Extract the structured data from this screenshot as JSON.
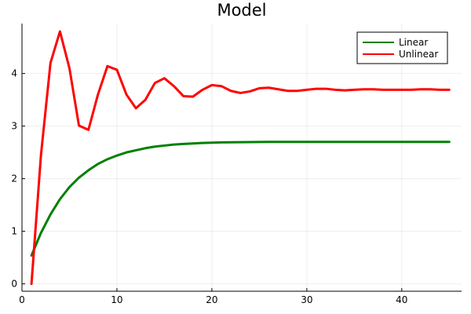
{
  "chart_data": {
    "type": "line",
    "title": "Model",
    "xlabel": "",
    "ylabel": "",
    "xlim": [
      0,
      46.3
    ],
    "ylim": [
      -0.14,
      4.95
    ],
    "xticks": [
      0,
      10,
      20,
      30,
      40
    ],
    "yticks": [
      0,
      1,
      2,
      3,
      4
    ],
    "xtick_labels": [
      "0",
      "10",
      "20",
      "30",
      "40"
    ],
    "ytick_labels": [
      "0",
      "1",
      "2",
      "3",
      "4"
    ],
    "grid": true,
    "legend_position": "top-right",
    "series": [
      {
        "name": "Linear",
        "color": "#008000",
        "x": [
          1,
          2,
          3,
          4,
          5,
          6,
          7,
          8,
          9,
          10,
          11,
          12,
          13,
          14,
          15,
          16,
          17,
          18,
          19,
          20,
          21,
          22,
          23,
          24,
          25,
          26,
          27,
          28,
          29,
          30,
          31,
          32,
          33,
          34,
          35,
          36,
          37,
          38,
          39,
          40,
          41,
          42,
          43,
          44,
          45
        ],
        "values": [
          0.54,
          0.97,
          1.32,
          1.61,
          1.84,
          2.02,
          2.16,
          2.28,
          2.37,
          2.44,
          2.5,
          2.54,
          2.58,
          2.61,
          2.63,
          2.65,
          2.66,
          2.67,
          2.68,
          2.685,
          2.69,
          2.693,
          2.695,
          2.697,
          2.698,
          2.699,
          2.7,
          2.7,
          2.7,
          2.7,
          2.7,
          2.7,
          2.7,
          2.7,
          2.7,
          2.7,
          2.7,
          2.7,
          2.7,
          2.7,
          2.7,
          2.7,
          2.7,
          2.7,
          2.7
        ]
      },
      {
        "name": "Unlinear",
        "color": "#ff0000",
        "x": [
          1,
          2,
          3,
          4,
          5,
          6,
          7,
          8,
          9,
          10,
          11,
          12,
          13,
          14,
          15,
          16,
          17,
          18,
          19,
          20,
          21,
          22,
          23,
          24,
          25,
          26,
          27,
          28,
          29,
          30,
          31,
          32,
          33,
          34,
          35,
          36,
          37,
          38,
          39,
          40,
          41,
          42,
          43,
          44,
          45
        ],
        "values": [
          0.0,
          2.45,
          4.2,
          4.8,
          4.1,
          3.01,
          2.93,
          3.6,
          4.14,
          4.07,
          3.6,
          3.34,
          3.5,
          3.82,
          3.91,
          3.76,
          3.57,
          3.56,
          3.69,
          3.78,
          3.76,
          3.67,
          3.63,
          3.66,
          3.72,
          3.73,
          3.7,
          3.67,
          3.67,
          3.69,
          3.71,
          3.71,
          3.69,
          3.68,
          3.69,
          3.7,
          3.7,
          3.69,
          3.69,
          3.69,
          3.69,
          3.7,
          3.7,
          3.69,
          3.69
        ]
      }
    ]
  }
}
